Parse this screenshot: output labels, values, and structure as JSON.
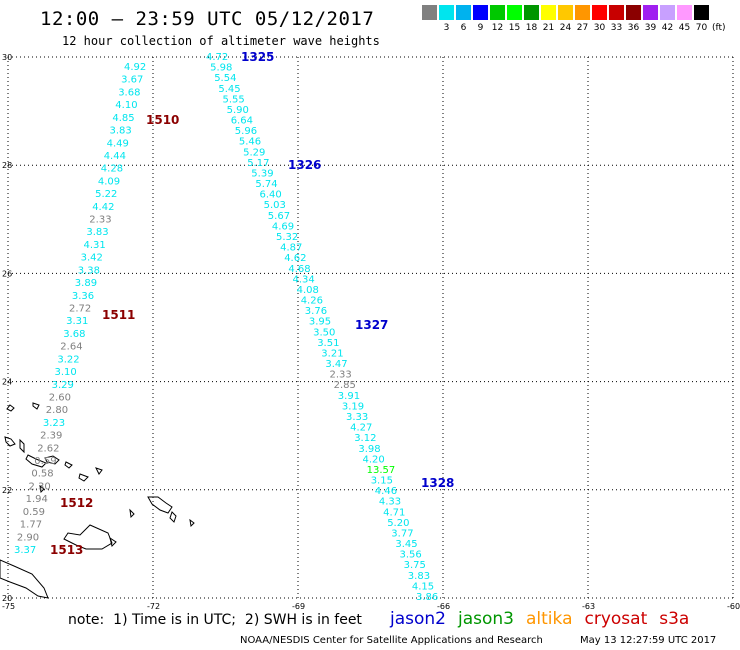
{
  "header": {
    "title": "12:00 – 23:59 UTC 05/12/2017",
    "subtitle": "12 hour collection of altimeter wave heights"
  },
  "legend": {
    "colors": [
      "#808080",
      "#00e5ee",
      "#00b2ee",
      "#0000ff",
      "#00c800",
      "#00ff00",
      "#009600",
      "#ffff00",
      "#ffc800",
      "#ff9600",
      "#ff0000",
      "#c80000",
      "#8b0000",
      "#a020f0",
      "#c8a0ff",
      "#ff99ff",
      "#000000"
    ],
    "labels": [
      "",
      "3",
      "6",
      "9",
      "12",
      "15",
      "18",
      "21",
      "24",
      "27",
      "30",
      "33",
      "36",
      "39",
      "42",
      "45",
      "70"
    ],
    "unit": "(ft)"
  },
  "map": {
    "lon_ticks": [
      "-75",
      "-72",
      "-69",
      "-66",
      "-63",
      "-60"
    ],
    "lat_ticks": [
      "20",
      "22",
      "24",
      "26",
      "28",
      "30"
    ],
    "lon_range": [
      -75,
      -60
    ],
    "lat_range": [
      20,
      30
    ]
  },
  "track_1510_values": [
    {
      "v": "4.92",
      "c": "#00e5ee"
    },
    {
      "v": "3.67",
      "c": "#00e5ee"
    },
    {
      "v": "3.68",
      "c": "#00e5ee"
    },
    {
      "v": "4.10",
      "c": "#00e5ee"
    },
    {
      "v": "4.85",
      "c": "#00e5ee"
    },
    {
      "v": "3.83",
      "c": "#00e5ee"
    },
    {
      "v": "4.49",
      "c": "#00e5ee"
    },
    {
      "v": "4.44",
      "c": "#00e5ee"
    },
    {
      "v": "4.28",
      "c": "#00e5ee"
    },
    {
      "v": "4.09",
      "c": "#00e5ee"
    },
    {
      "v": "5.22",
      "c": "#00e5ee"
    },
    {
      "v": "4.42",
      "c": "#00e5ee"
    },
    {
      "v": "2.33",
      "c": "#808080"
    },
    {
      "v": "3.83",
      "c": "#00e5ee"
    },
    {
      "v": "4.31",
      "c": "#00e5ee"
    },
    {
      "v": "3.42",
      "c": "#00e5ee"
    },
    {
      "v": "3.38",
      "c": "#00e5ee"
    },
    {
      "v": "3.89",
      "c": "#00e5ee"
    },
    {
      "v": "3.36",
      "c": "#00e5ee"
    },
    {
      "v": "2.72",
      "c": "#808080"
    },
    {
      "v": "3.31",
      "c": "#00e5ee"
    },
    {
      "v": "3.68",
      "c": "#00e5ee"
    },
    {
      "v": "2.64",
      "c": "#808080"
    },
    {
      "v": "3.22",
      "c": "#00e5ee"
    },
    {
      "v": "3.10",
      "c": "#00e5ee"
    },
    {
      "v": "3.29",
      "c": "#00e5ee"
    },
    {
      "v": "2.60",
      "c": "#808080"
    },
    {
      "v": "2.80",
      "c": "#808080"
    },
    {
      "v": "3.23",
      "c": "#00e5ee"
    },
    {
      "v": "2.39",
      "c": "#808080"
    },
    {
      "v": "2.62",
      "c": "#808080"
    },
    {
      "v": "0.59",
      "c": "#808080"
    },
    {
      "v": "0.58",
      "c": "#808080"
    },
    {
      "v": "2.30",
      "c": "#808080"
    },
    {
      "v": "1.94",
      "c": "#808080"
    },
    {
      "v": "0.59",
      "c": "#808080"
    },
    {
      "v": "1.77",
      "c": "#808080"
    },
    {
      "v": "2.90",
      "c": "#808080"
    },
    {
      "v": "3.37",
      "c": "#00e5ee"
    }
  ],
  "track_1325_values": [
    {
      "v": "4.72",
      "c": "#00e5ee"
    },
    {
      "v": "5.98",
      "c": "#00e5ee"
    },
    {
      "v": "5.54",
      "c": "#00e5ee"
    },
    {
      "v": "5.45",
      "c": "#00e5ee"
    },
    {
      "v": "5.55",
      "c": "#00e5ee"
    },
    {
      "v": "5.90",
      "c": "#00e5ee"
    },
    {
      "v": "6.64",
      "c": "#00e5ee"
    },
    {
      "v": "5.96",
      "c": "#00e5ee"
    },
    {
      "v": "5.46",
      "c": "#00e5ee"
    },
    {
      "v": "5.29",
      "c": "#00e5ee"
    },
    {
      "v": "5.17",
      "c": "#00e5ee"
    },
    {
      "v": "5.39",
      "c": "#00e5ee"
    },
    {
      "v": "5.74",
      "c": "#00e5ee"
    },
    {
      "v": "6.40",
      "c": "#00e5ee"
    },
    {
      "v": "5.03",
      "c": "#00e5ee"
    },
    {
      "v": "5.67",
      "c": "#00e5ee"
    },
    {
      "v": "4.69",
      "c": "#00e5ee"
    },
    {
      "v": "5.32",
      "c": "#00e5ee"
    },
    {
      "v": "4.87",
      "c": "#00e5ee"
    },
    {
      "v": "4.62",
      "c": "#00e5ee"
    },
    {
      "v": "4.68",
      "c": "#00e5ee"
    },
    {
      "v": "4.34",
      "c": "#00e5ee"
    },
    {
      "v": "4.08",
      "c": "#00e5ee"
    },
    {
      "v": "4.26",
      "c": "#00e5ee"
    },
    {
      "v": "3.76",
      "c": "#00e5ee"
    },
    {
      "v": "3.95",
      "c": "#00e5ee"
    },
    {
      "v": "3.50",
      "c": "#00e5ee"
    },
    {
      "v": "3.51",
      "c": "#00e5ee"
    },
    {
      "v": "3.21",
      "c": "#00e5ee"
    },
    {
      "v": "3.47",
      "c": "#00e5ee"
    },
    {
      "v": "2.33",
      "c": "#808080"
    },
    {
      "v": "2.85",
      "c": "#808080"
    },
    {
      "v": "3.91",
      "c": "#00e5ee"
    },
    {
      "v": "3.19",
      "c": "#00e5ee"
    },
    {
      "v": "3.33",
      "c": "#00e5ee"
    },
    {
      "v": "4.27",
      "c": "#00e5ee"
    },
    {
      "v": "3.12",
      "c": "#00e5ee"
    },
    {
      "v": "3.98",
      "c": "#00e5ee"
    },
    {
      "v": "4.20",
      "c": "#00e5ee"
    },
    {
      "v": "13.57",
      "c": "#00ff00"
    },
    {
      "v": "3.15",
      "c": "#00e5ee"
    },
    {
      "v": "4.46",
      "c": "#00e5ee"
    },
    {
      "v": "4.33",
      "c": "#00e5ee"
    },
    {
      "v": "4.71",
      "c": "#00e5ee"
    },
    {
      "v": "5.20",
      "c": "#00e5ee"
    },
    {
      "v": "3.77",
      "c": "#00e5ee"
    },
    {
      "v": "3.45",
      "c": "#00e5ee"
    },
    {
      "v": "3.56",
      "c": "#00e5ee"
    },
    {
      "v": "3.75",
      "c": "#00e5ee"
    },
    {
      "v": "3.83",
      "c": "#00e5ee"
    },
    {
      "v": "4.15",
      "c": "#00e5ee"
    },
    {
      "v": "3.86",
      "c": "#00e5ee"
    }
  ],
  "pass_labels": [
    {
      "text": "1325",
      "color": "#0000cc"
    },
    {
      "text": "1326",
      "color": "#0000cc"
    },
    {
      "text": "1327",
      "color": "#0000cc"
    },
    {
      "text": "1328",
      "color": "#0000cc"
    },
    {
      "text": "1510",
      "color": "#8b0000"
    },
    {
      "text": "1511",
      "color": "#8b0000"
    },
    {
      "text": "1512",
      "color": "#8b0000"
    },
    {
      "text": "1513",
      "color": "#8b0000"
    }
  ],
  "footer": {
    "note": "note:  1) Time is in UTC;  2) SWH is in feet",
    "satellites": [
      {
        "name": "jason2",
        "color": "#0000cc"
      },
      {
        "name": "jason3",
        "color": "#009600"
      },
      {
        "name": "altika",
        "color": "#ff9600"
      },
      {
        "name": "cryosat",
        "color": "#cc0000"
      },
      {
        "name": "s3a",
        "color": "#cc0000"
      }
    ],
    "credit": "NOAA/NESDIS Center for Satellite Applications and Research",
    "timestamp": "May 13 12:27:59 UTC 2017"
  }
}
